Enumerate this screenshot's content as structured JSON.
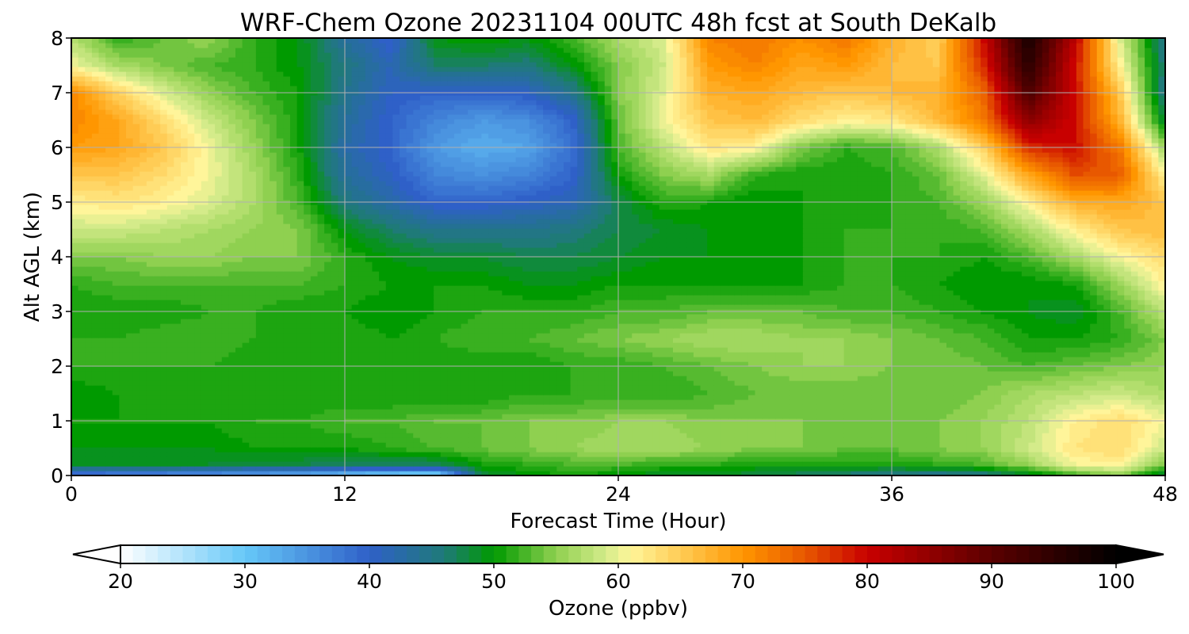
{
  "chart_data": {
    "type": "heatmap",
    "title": "WRF-Chem Ozone  20231104 00UTC 48h fcst at South DeKalb",
    "xlabel": "Forecast Time (Hour)",
    "ylabel": "Alt AGL (km)",
    "xlim": [
      0,
      48
    ],
    "ylim": [
      0,
      8
    ],
    "x_ticks": [
      0,
      12,
      24,
      36,
      48
    ],
    "y_ticks": [
      0,
      1,
      2,
      3,
      4,
      5,
      6,
      7,
      8
    ],
    "grid": true,
    "plot_style": "filled contour",
    "colorbar": {
      "label": "Ozone  (ppbv)",
      "orientation": "horizontal",
      "placement": "bottom",
      "range": [
        20,
        100
      ],
      "ticks": [
        20,
        30,
        40,
        50,
        60,
        70,
        80,
        90,
        100
      ],
      "extend": "both",
      "stops": [
        {
          "v": 20,
          "c": "#ffffff"
        },
        {
          "v": 30,
          "c": "#66c8f8"
        },
        {
          "v": 40,
          "c": "#2f60c8"
        },
        {
          "v": 46,
          "c": "#1f7a78"
        },
        {
          "v": 50,
          "c": "#009a00"
        },
        {
          "v": 55,
          "c": "#8fd050"
        },
        {
          "v": 59,
          "c": "#d4eb8a"
        },
        {
          "v": 61,
          "c": "#fff59a"
        },
        {
          "v": 65,
          "c": "#ffcc55"
        },
        {
          "v": 70,
          "c": "#ff9600"
        },
        {
          "v": 75,
          "c": "#e85800"
        },
        {
          "v": 80,
          "c": "#c80000"
        },
        {
          "v": 90,
          "c": "#5a0000"
        },
        {
          "v": 100,
          "c": "#000000"
        }
      ]
    },
    "x": [
      0,
      2,
      4,
      6,
      8,
      10,
      12,
      14,
      16,
      18,
      20,
      22,
      24,
      26,
      28,
      30,
      32,
      34,
      36,
      38,
      40,
      42,
      44,
      46,
      48
    ],
    "y": [
      0,
      0.2,
      0.5,
      1,
      1.5,
      2,
      2.5,
      3,
      3.5,
      4,
      4.5,
      5,
      5.5,
      6,
      6.5,
      7,
      7.5,
      8
    ],
    "z": [
      [
        37,
        36,
        35,
        34,
        33,
        32,
        30,
        28,
        27,
        48,
        50,
        51,
        50,
        49,
        49,
        48,
        47,
        46,
        45,
        44,
        45,
        48,
        52,
        55,
        47
      ],
      [
        49,
        49,
        49,
        49,
        48,
        48,
        47,
        47,
        47,
        51,
        52,
        53,
        53,
        52,
        52,
        51,
        51,
        51,
        51,
        52,
        53,
        56,
        61,
        62,
        55
      ],
      [
        50,
        50,
        50,
        50,
        51,
        51,
        51,
        52,
        53,
        54,
        55,
        56,
        57,
        57,
        56,
        55,
        55,
        54,
        54,
        55,
        56,
        59,
        63,
        64,
        59
      ],
      [
        51,
        51,
        51,
        51,
        52,
        52,
        53,
        53,
        54,
        54,
        55,
        55,
        56,
        56,
        55,
        55,
        55,
        54,
        54,
        55,
        56,
        58,
        62,
        64,
        61
      ],
      [
        50,
        51,
        51,
        51,
        51,
        51,
        51,
        51,
        51,
        51,
        52,
        52,
        52,
        52,
        53,
        54,
        54,
        54,
        54,
        54,
        55,
        57,
        58,
        59,
        57
      ],
      [
        52,
        52,
        52,
        52,
        51,
        51,
        51,
        51,
        51,
        51,
        51,
        52,
        52,
        53,
        54,
        55,
        56,
        56,
        55,
        55,
        54,
        53,
        54,
        55,
        56
      ],
      [
        52,
        52,
        53,
        53,
        52,
        52,
        52,
        51,
        52,
        53,
        53,
        54,
        55,
        56,
        57,
        57,
        56,
        56,
        55,
        54,
        53,
        51,
        51,
        52,
        55
      ],
      [
        51,
        51,
        51,
        52,
        52,
        51,
        51,
        50,
        51,
        52,
        52,
        52,
        53,
        53,
        54,
        54,
        54,
        53,
        53,
        52,
        51,
        50,
        49,
        53,
        58
      ],
      [
        52,
        53,
        53,
        53,
        53,
        53,
        52,
        51,
        51,
        51,
        50,
        50,
        51,
        51,
        51,
        51,
        51,
        52,
        52,
        51,
        50,
        50,
        51,
        56,
        62
      ],
      [
        55,
        55,
        56,
        56,
        55,
        55,
        52,
        50,
        49,
        49,
        48,
        48,
        49,
        50,
        50,
        50,
        51,
        52,
        52,
        52,
        51,
        53,
        57,
        61,
        64
      ],
      [
        59,
        59,
        58,
        57,
        56,
        55,
        50,
        47,
        45,
        45,
        45,
        46,
        48,
        49,
        50,
        50,
        51,
        52,
        52,
        52,
        53,
        57,
        62,
        66,
        67
      ],
      [
        62,
        63,
        62,
        60,
        57,
        53,
        46,
        43,
        40,
        40,
        41,
        42,
        48,
        52,
        51,
        50,
        51,
        51,
        52,
        53,
        56,
        62,
        68,
        69,
        66
      ],
      [
        66,
        66,
        64,
        61,
        57,
        52,
        44,
        41,
        37,
        36,
        37,
        40,
        51,
        55,
        57,
        52,
        51,
        51,
        52,
        54,
        60,
        69,
        76,
        75,
        62
      ],
      [
        70,
        69,
        66,
        61,
        56,
        51,
        43,
        40,
        35,
        33,
        34,
        39,
        53,
        58,
        63,
        62,
        55,
        52,
        53,
        57,
        65,
        78,
        80,
        73,
        56
      ],
      [
        72,
        69,
        64,
        59,
        55,
        51,
        44,
        40,
        37,
        35,
        36,
        40,
        54,
        61,
        66,
        67,
        64,
        62,
        63,
        67,
        73,
        86,
        80,
        68,
        48
      ],
      [
        72,
        65,
        60,
        56,
        53,
        51,
        45,
        41,
        40,
        40,
        41,
        45,
        55,
        60,
        68,
        69,
        67,
        66,
        67,
        68,
        74,
        92,
        80,
        66,
        45
      ],
      [
        61,
        57,
        55,
        53,
        52,
        50,
        46,
        42,
        47,
        47,
        46,
        50,
        55,
        59,
        70,
        72,
        69,
        70,
        67,
        66,
        78,
        96,
        80,
        62,
        46
      ],
      [
        58,
        52,
        54,
        56,
        52,
        50,
        44,
        40,
        50,
        51,
        50,
        53,
        57,
        60,
        72,
        73,
        71,
        73,
        68,
        65,
        80,
        98,
        82,
        60,
        45
      ]
    ]
  }
}
